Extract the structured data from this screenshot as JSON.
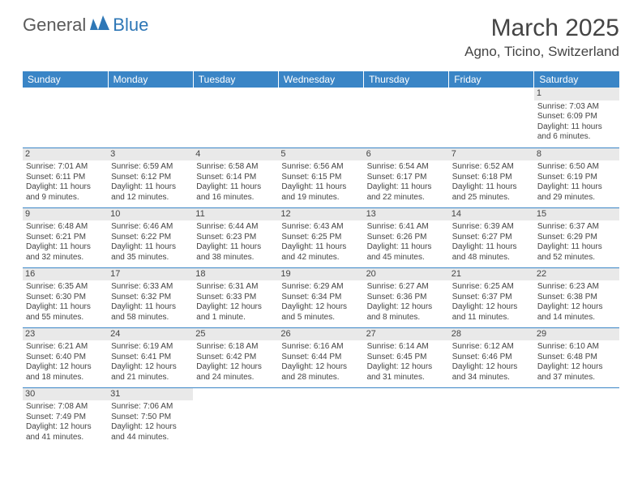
{
  "logo": {
    "part1": "General",
    "part2": "Blue"
  },
  "title": "March 2025",
  "location": "Agno, Ticino, Switzerland",
  "header_bg": "#3a85c6",
  "dayname_color": "#ffffff",
  "daynum_bg": "#e9e9e9",
  "border_color": "#3a85c6",
  "text_color": "#444444",
  "columns": [
    "Sunday",
    "Monday",
    "Tuesday",
    "Wednesday",
    "Thursday",
    "Friday",
    "Saturday"
  ],
  "weeks": [
    [
      null,
      null,
      null,
      null,
      null,
      null,
      {
        "n": "1",
        "sr": "Sunrise: 7:03 AM",
        "ss": "Sunset: 6:09 PM",
        "dl": "Daylight: 11 hours and 6 minutes."
      }
    ],
    [
      {
        "n": "2",
        "sr": "Sunrise: 7:01 AM",
        "ss": "Sunset: 6:11 PM",
        "dl": "Daylight: 11 hours and 9 minutes."
      },
      {
        "n": "3",
        "sr": "Sunrise: 6:59 AM",
        "ss": "Sunset: 6:12 PM",
        "dl": "Daylight: 11 hours and 12 minutes."
      },
      {
        "n": "4",
        "sr": "Sunrise: 6:58 AM",
        "ss": "Sunset: 6:14 PM",
        "dl": "Daylight: 11 hours and 16 minutes."
      },
      {
        "n": "5",
        "sr": "Sunrise: 6:56 AM",
        "ss": "Sunset: 6:15 PM",
        "dl": "Daylight: 11 hours and 19 minutes."
      },
      {
        "n": "6",
        "sr": "Sunrise: 6:54 AM",
        "ss": "Sunset: 6:17 PM",
        "dl": "Daylight: 11 hours and 22 minutes."
      },
      {
        "n": "7",
        "sr": "Sunrise: 6:52 AM",
        "ss": "Sunset: 6:18 PM",
        "dl": "Daylight: 11 hours and 25 minutes."
      },
      {
        "n": "8",
        "sr": "Sunrise: 6:50 AM",
        "ss": "Sunset: 6:19 PM",
        "dl": "Daylight: 11 hours and 29 minutes."
      }
    ],
    [
      {
        "n": "9",
        "sr": "Sunrise: 6:48 AM",
        "ss": "Sunset: 6:21 PM",
        "dl": "Daylight: 11 hours and 32 minutes."
      },
      {
        "n": "10",
        "sr": "Sunrise: 6:46 AM",
        "ss": "Sunset: 6:22 PM",
        "dl": "Daylight: 11 hours and 35 minutes."
      },
      {
        "n": "11",
        "sr": "Sunrise: 6:44 AM",
        "ss": "Sunset: 6:23 PM",
        "dl": "Daylight: 11 hours and 38 minutes."
      },
      {
        "n": "12",
        "sr": "Sunrise: 6:43 AM",
        "ss": "Sunset: 6:25 PM",
        "dl": "Daylight: 11 hours and 42 minutes."
      },
      {
        "n": "13",
        "sr": "Sunrise: 6:41 AM",
        "ss": "Sunset: 6:26 PM",
        "dl": "Daylight: 11 hours and 45 minutes."
      },
      {
        "n": "14",
        "sr": "Sunrise: 6:39 AM",
        "ss": "Sunset: 6:27 PM",
        "dl": "Daylight: 11 hours and 48 minutes."
      },
      {
        "n": "15",
        "sr": "Sunrise: 6:37 AM",
        "ss": "Sunset: 6:29 PM",
        "dl": "Daylight: 11 hours and 52 minutes."
      }
    ],
    [
      {
        "n": "16",
        "sr": "Sunrise: 6:35 AM",
        "ss": "Sunset: 6:30 PM",
        "dl": "Daylight: 11 hours and 55 minutes."
      },
      {
        "n": "17",
        "sr": "Sunrise: 6:33 AM",
        "ss": "Sunset: 6:32 PM",
        "dl": "Daylight: 11 hours and 58 minutes."
      },
      {
        "n": "18",
        "sr": "Sunrise: 6:31 AM",
        "ss": "Sunset: 6:33 PM",
        "dl": "Daylight: 12 hours and 1 minute."
      },
      {
        "n": "19",
        "sr": "Sunrise: 6:29 AM",
        "ss": "Sunset: 6:34 PM",
        "dl": "Daylight: 12 hours and 5 minutes."
      },
      {
        "n": "20",
        "sr": "Sunrise: 6:27 AM",
        "ss": "Sunset: 6:36 PM",
        "dl": "Daylight: 12 hours and 8 minutes."
      },
      {
        "n": "21",
        "sr": "Sunrise: 6:25 AM",
        "ss": "Sunset: 6:37 PM",
        "dl": "Daylight: 12 hours and 11 minutes."
      },
      {
        "n": "22",
        "sr": "Sunrise: 6:23 AM",
        "ss": "Sunset: 6:38 PM",
        "dl": "Daylight: 12 hours and 14 minutes."
      }
    ],
    [
      {
        "n": "23",
        "sr": "Sunrise: 6:21 AM",
        "ss": "Sunset: 6:40 PM",
        "dl": "Daylight: 12 hours and 18 minutes."
      },
      {
        "n": "24",
        "sr": "Sunrise: 6:19 AM",
        "ss": "Sunset: 6:41 PM",
        "dl": "Daylight: 12 hours and 21 minutes."
      },
      {
        "n": "25",
        "sr": "Sunrise: 6:18 AM",
        "ss": "Sunset: 6:42 PM",
        "dl": "Daylight: 12 hours and 24 minutes."
      },
      {
        "n": "26",
        "sr": "Sunrise: 6:16 AM",
        "ss": "Sunset: 6:44 PM",
        "dl": "Daylight: 12 hours and 28 minutes."
      },
      {
        "n": "27",
        "sr": "Sunrise: 6:14 AM",
        "ss": "Sunset: 6:45 PM",
        "dl": "Daylight: 12 hours and 31 minutes."
      },
      {
        "n": "28",
        "sr": "Sunrise: 6:12 AM",
        "ss": "Sunset: 6:46 PM",
        "dl": "Daylight: 12 hours and 34 minutes."
      },
      {
        "n": "29",
        "sr": "Sunrise: 6:10 AM",
        "ss": "Sunset: 6:48 PM",
        "dl": "Daylight: 12 hours and 37 minutes."
      }
    ],
    [
      {
        "n": "30",
        "sr": "Sunrise: 7:08 AM",
        "ss": "Sunset: 7:49 PM",
        "dl": "Daylight: 12 hours and 41 minutes."
      },
      {
        "n": "31",
        "sr": "Sunrise: 7:06 AM",
        "ss": "Sunset: 7:50 PM",
        "dl": "Daylight: 12 hours and 44 minutes."
      },
      null,
      null,
      null,
      null,
      null
    ]
  ]
}
